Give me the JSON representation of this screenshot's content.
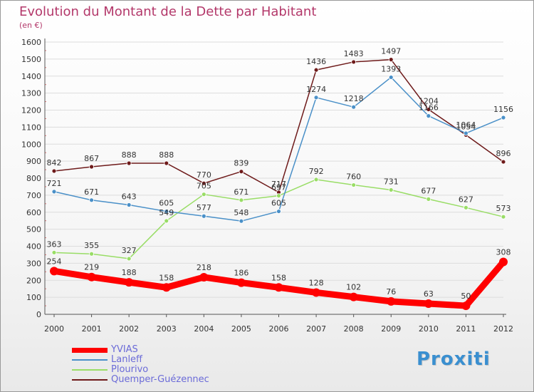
{
  "chart_data": {
    "type": "line",
    "title": "Evolution du Montant de la Dette par Habitant",
    "subtitle": "(en €)",
    "xlabel": "",
    "ylabel": "",
    "ylim": [
      0,
      1600
    ],
    "yticks": [
      0,
      100,
      200,
      300,
      400,
      500,
      600,
      700,
      800,
      900,
      1000,
      1100,
      1200,
      1300,
      1400,
      1500,
      1600
    ],
    "categories": [
      "2000",
      "2001",
      "2002",
      "2003",
      "2004",
      "2005",
      "2006",
      "2007",
      "2008",
      "2009",
      "2010",
      "2011",
      "2012"
    ],
    "grid": "horizontal",
    "legend_position": "bottom-left",
    "series": [
      {
        "name": "Quemper-Guézennec",
        "color": "#6e1a1a",
        "values": [
          842,
          867,
          888,
          888,
          770,
          839,
          717,
          1436,
          1483,
          1497,
          1204,
          1054,
          896
        ]
      },
      {
        "name": "Plourivo",
        "color": "#99dd66",
        "values": [
          363,
          355,
          327,
          549,
          705,
          671,
          697,
          792,
          760,
          731,
          677,
          627,
          573
        ]
      },
      {
        "name": "Lanleff",
        "color": "#4a90c8",
        "values": [
          721,
          671,
          643,
          605,
          577,
          548,
          605,
          1274,
          1218,
          1393,
          1166,
          1064,
          1156
        ]
      },
      {
        "name": "YVIAS",
        "color": "#ff0000",
        "values": [
          254,
          219,
          188,
          158,
          218,
          186,
          158,
          128,
          102,
          76,
          63,
          50,
          308
        ]
      }
    ]
  },
  "legend": [
    {
      "name": "YVIAS",
      "color": "#ff0000",
      "width": "heavy"
    },
    {
      "name": "Lanleff",
      "color": "#4a90c8",
      "width": "thin"
    },
    {
      "name": "Plourivo",
      "color": "#99dd66",
      "width": "thin"
    },
    {
      "name": "Quemper-Guézennec",
      "color": "#6e1a1a",
      "width": "thin"
    }
  ],
  "logo": {
    "text": "Proxiti"
  }
}
